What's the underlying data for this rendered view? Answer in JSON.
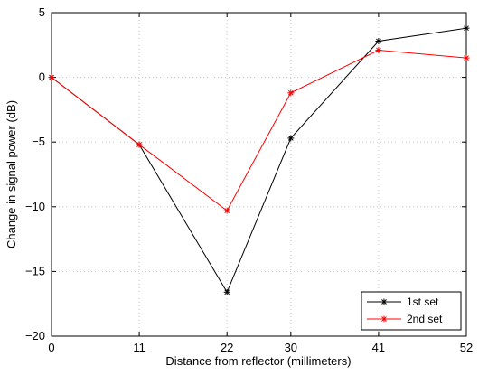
{
  "chart_data": {
    "type": "line",
    "xlabel": "Distance from reflector (millimeters)",
    "ylabel": "Change in signal power (dB)",
    "x": [
      0,
      11,
      22,
      30,
      41,
      52
    ],
    "x_ticks": [
      "0",
      "11",
      "22",
      "30",
      "41",
      "52"
    ],
    "xlim": [
      0,
      52
    ],
    "ylim": [
      -20,
      5
    ],
    "y_ticks": [
      5,
      0,
      -5,
      -10,
      -15,
      -20
    ],
    "grid": true,
    "legend_position": "bottom-right",
    "series": [
      {
        "name": "1st set",
        "color": "#000000",
        "marker": "asterisk",
        "values": [
          0,
          -5.2,
          -16.6,
          -4.7,
          2.8,
          3.8
        ]
      },
      {
        "name": "2nd set",
        "color": "#ff0000",
        "marker": "asterisk",
        "values": [
          0,
          -5.2,
          -10.3,
          -1.2,
          2.1,
          1.5
        ]
      }
    ]
  }
}
